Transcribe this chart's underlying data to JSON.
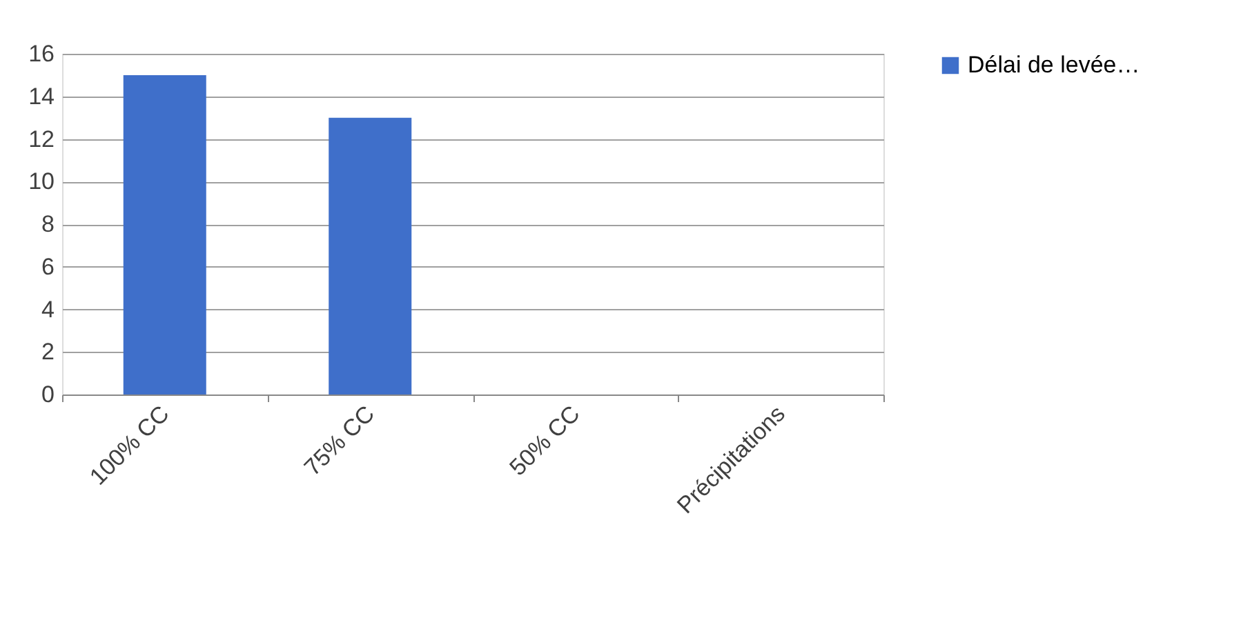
{
  "chart_data": {
    "type": "bar",
    "categories": [
      "100% CC",
      "75% CC",
      "50% CC",
      "Précipitations"
    ],
    "series": [
      {
        "name": "Délai de levée…",
        "color": "#3f6fca",
        "values": [
          15,
          13,
          0,
          0
        ]
      }
    ],
    "ylim": [
      0,
      16
    ],
    "yticks": [
      0,
      2,
      4,
      6,
      8,
      10,
      12,
      14,
      16
    ],
    "grid": "y",
    "legend": "right"
  }
}
